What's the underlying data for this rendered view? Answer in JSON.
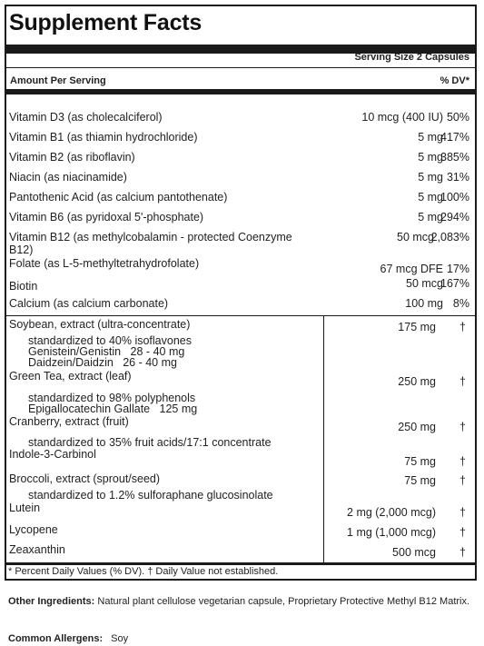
{
  "panel": {
    "title": "Supplement Facts",
    "serving": "Serving Size 2 Capsules",
    "amount_header": "Amount Per Serving",
    "dv_header": "% DV*"
  },
  "vitamins": [
    {
      "name": "Vitamin D3 (as cholecalciferol)",
      "amount": "10 mcg (400 IU)",
      "dv": "50%"
    },
    {
      "name": "Vitamin B1 (as thiamin hydrochloride)",
      "amount": "5 mg",
      "dv": "417%"
    },
    {
      "name": "Vitamin B2 (as riboflavin)",
      "amount": "5 mg",
      "dv": "385%"
    },
    {
      "name": "Niacin (as niacinamide)",
      "amount": "5 mg",
      "dv": "31%"
    },
    {
      "name": "Pantothenic Acid (as calcium pantothenate)",
      "amount": "5 mg",
      "dv": "100%"
    },
    {
      "name": "Vitamin B6 (as pyridoxal 5'-phosphate)",
      "amount": "5 mg",
      "dv": "294%"
    },
    {
      "name": "Vitamin B12 (as methylcobalamin - protected Coenzyme B12)",
      "amount": "50 mcg",
      "dv": "2,083%"
    },
    {
      "name": "Folate (as L-5-methyltetrahydrofolate)",
      "amount": "67 mcg DFE",
      "dv": "17%"
    },
    {
      "name": "Biotin",
      "amount": "50 mcg",
      "dv": "167%"
    },
    {
      "name": "Calcium (as calcium carbonate)",
      "amount": "100 mg",
      "dv": "8%"
    }
  ],
  "others": [
    {
      "name": "Soybean, extract (ultra-concentrate)",
      "amount": "175 mg",
      "dv": "†"
    },
    {
      "name": "Green Tea, extract (leaf)",
      "amount": "250 mg",
      "dv": "†"
    },
    {
      "name": "Cranberry, extract (fruit)",
      "amount": "250 mg",
      "dv": "†"
    },
    {
      "name": "Indole-3-Carbinol",
      "amount": "75 mg",
      "dv": "†"
    },
    {
      "name": "Broccoli, extract (sprout/seed)",
      "amount": "75 mg",
      "dv": "†"
    },
    {
      "name": "Lutein",
      "amount": "2 mg (2,000 mcg)",
      "dv": "†"
    },
    {
      "name": "Lycopene",
      "amount": "1 mg (1,000 mcg)",
      "dv": "†"
    },
    {
      "name": "Zeaxanthin",
      "amount": "500 mcg",
      "dv": "†"
    }
  ],
  "subnotes": {
    "soy1": "standardized to 40% isoflavones",
    "soy2": "Genistein/Genistin   28 - 40 mg",
    "soy3": "Daidzein/Daidzin   26 - 40 mg",
    "tea1": "standardized to 98% polyphenols",
    "tea2": "Epigallocatechin Gallate   125 mg",
    "cran1": "standardized to 35% fruit acids/17:1 concentrate",
    "broc1": "standardized to 1.2% sulforaphane glucosinolate"
  },
  "footnote": "* Percent Daily Values (% DV). † Daily Value not established.",
  "other_ingredients": {
    "label": "Other Ingredients:",
    "text": "Natural plant cellulose vegetarian capsule, Proprietary Protective Methyl B12 Matrix."
  },
  "allergens": {
    "label": "Common Allergens:",
    "text": "Soy"
  }
}
